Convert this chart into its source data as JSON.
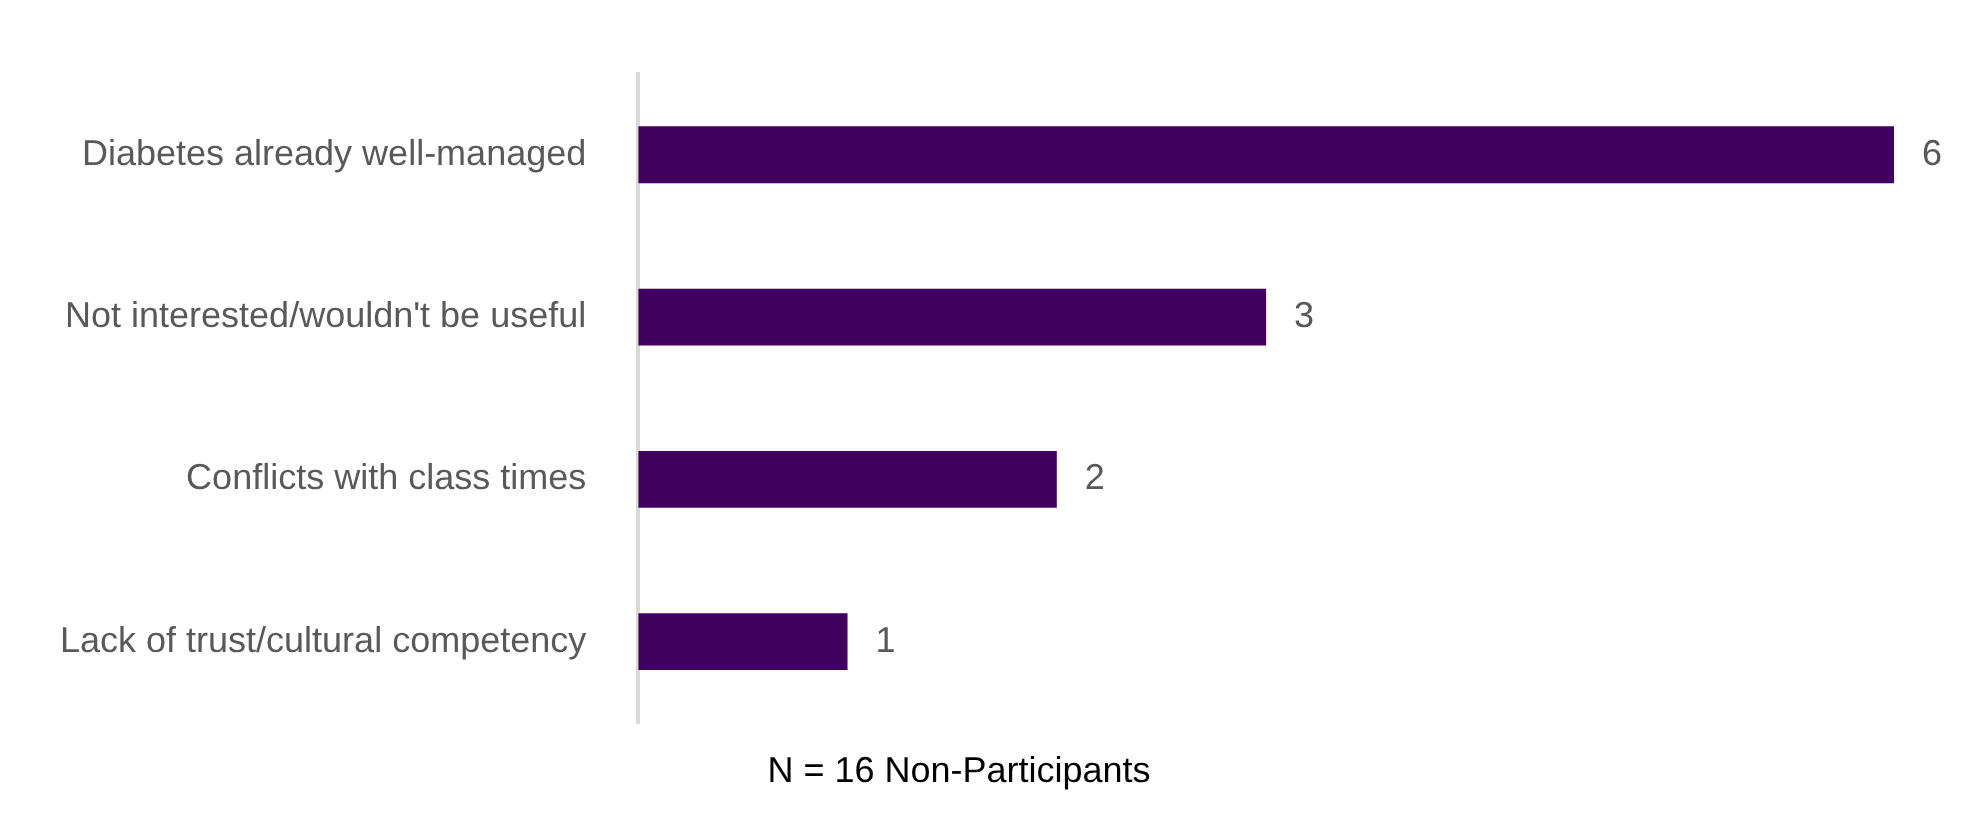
{
  "chart_data": {
    "type": "bar",
    "orientation": "horizontal",
    "xlabel": "N = 16 Non-Participants",
    "categories": [
      "Diabetes already well-managed",
      "Not interested/wouldn't be useful",
      "Conflicts with class times",
      "Lack of trust/cultural competency"
    ],
    "values": [
      6,
      3,
      2,
      1
    ],
    "color": "#42005e",
    "data_labels": true,
    "legend": false
  }
}
